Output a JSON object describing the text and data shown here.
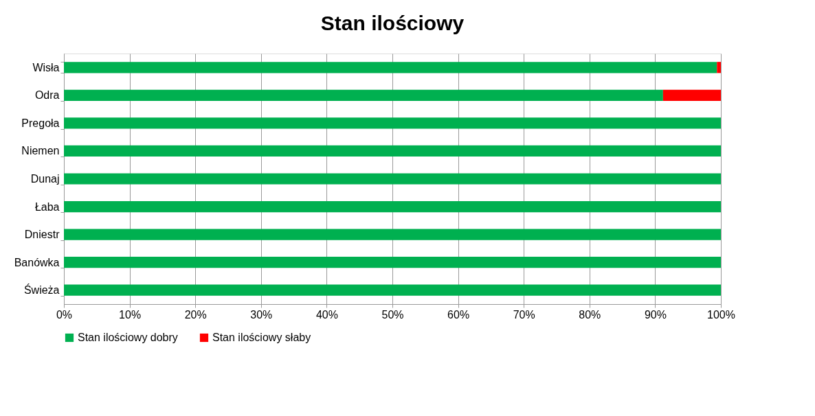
{
  "chart_data": {
    "type": "bar",
    "title": "Stan ilościowy",
    "orientation": "horizontal",
    "stacked": true,
    "categories": [
      "Wisła",
      "Odra",
      "Pregoła",
      "Niemen",
      "Dunaj",
      "Łaba",
      "Dniestr",
      "Banówka",
      "Świeża"
    ],
    "series": [
      {
        "name": "Stan ilościowy dobry",
        "color": "#00b050",
        "values": [
          99.4,
          91.2,
          100,
          100,
          100,
          100,
          100,
          100,
          100
        ]
      },
      {
        "name": "Stan ilościowy słaby",
        "color": "#ff0000",
        "values": [
          0.6,
          8.8,
          0,
          0,
          0,
          0,
          0,
          0,
          0
        ]
      }
    ],
    "xlim": [
      0,
      100
    ],
    "xticks": [
      {
        "value": 0,
        "label": "0%"
      },
      {
        "value": 10,
        "label": "10%"
      },
      {
        "value": 20,
        "label": "20%"
      },
      {
        "value": 30,
        "label": "30%"
      },
      {
        "value": 40,
        "label": "40%"
      },
      {
        "value": 50,
        "label": "50%"
      },
      {
        "value": 60,
        "label": "60%"
      },
      {
        "value": 70,
        "label": "70%"
      },
      {
        "value": 80,
        "label": "80%"
      },
      {
        "value": 90,
        "label": "90%"
      },
      {
        "value": 100,
        "label": "100%"
      }
    ],
    "grid": "x",
    "legend": "bottom"
  }
}
